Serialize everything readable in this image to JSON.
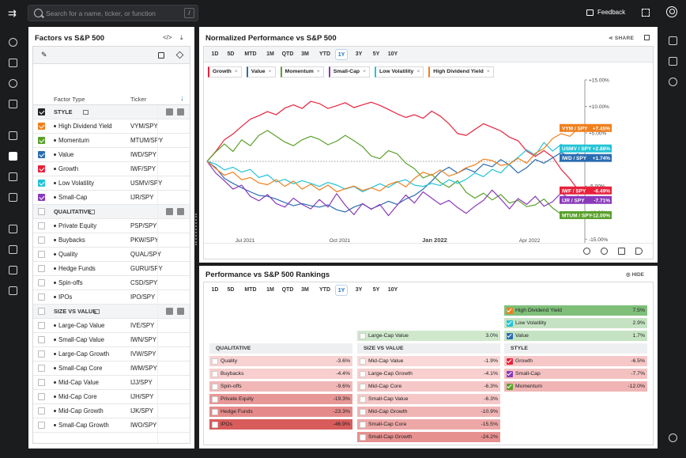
{
  "topbar": {
    "search_placeholder": "Search for a name, ticker, or function",
    "search_shortcut": "/",
    "feedback_label": "Feedback"
  },
  "factors_panel": {
    "title": "Factors vs S&P 500",
    "col_factor_type": "Factor Type",
    "col_ticker": "Ticker",
    "groups": [
      {
        "name": "STYLE",
        "rows": [
          {
            "name": "High Dividend Yield",
            "ticker": "VYM/SPY",
            "checked": true,
            "color": "#f07f1d"
          },
          {
            "name": "Momentum",
            "ticker": "MTUM/SPY",
            "checked": true,
            "color": "#5aa02c"
          },
          {
            "name": "Value",
            "ticker": "IWD/SPY",
            "checked": true,
            "color": "#2b6cb0"
          },
          {
            "name": "Growth",
            "ticker": "IWF/SPY",
            "checked": true,
            "color": "#e8213b"
          },
          {
            "name": "Low Volatility",
            "ticker": "USMV/SPY",
            "checked": true,
            "color": "#22c3d6"
          },
          {
            "name": "Small-Cap",
            "ticker": "IJR/SPY",
            "checked": true,
            "color": "#8a3ab9"
          }
        ]
      },
      {
        "name": "QUALITATIVE",
        "rows": [
          {
            "name": "Private Equity",
            "ticker": "PSP/SPY",
            "checked": false
          },
          {
            "name": "Buybacks",
            "ticker": "PKW/SPY",
            "checked": false
          },
          {
            "name": "Quality",
            "ticker": "QUAL/SPY",
            "checked": false
          },
          {
            "name": "Hedge Funds",
            "ticker": "GURU/SPY",
            "checked": false
          },
          {
            "name": "Spin-offs",
            "ticker": "CSD/SPY",
            "checked": false
          },
          {
            "name": "IPOs",
            "ticker": "IPO/SPY",
            "checked": false
          }
        ]
      },
      {
        "name": "SIZE VS VALUE",
        "rows": [
          {
            "name": "Large-Cap Value",
            "ticker": "IVE/SPY",
            "checked": false
          },
          {
            "name": "Small-Cap Value",
            "ticker": "IWN/SPY",
            "checked": false
          },
          {
            "name": "Large-Cap Growth",
            "ticker": "IVW/SPY",
            "checked": false
          },
          {
            "name": "Small-Cap Core",
            "ticker": "IWM/SPY",
            "checked": false
          },
          {
            "name": "Mid-Cap Value",
            "ticker": "IJJ/SPY",
            "checked": false
          },
          {
            "name": "Mid-Cap Core",
            "ticker": "IJH/SPY",
            "checked": false
          },
          {
            "name": "Mid-Cap Growth",
            "ticker": "IJK/SPY",
            "checked": false
          },
          {
            "name": "Small-Cap Growth",
            "ticker": "IWO/SPY",
            "checked": false
          }
        ]
      }
    ]
  },
  "chart_panel": {
    "title": "Normalized Performance vs S&P 500",
    "share_label": "SHARE",
    "ranges": [
      "1D",
      "5D",
      "MTD",
      "1M",
      "QTD",
      "3M",
      "YTD",
      "1Y",
      "3Y",
      "5Y",
      "10Y"
    ],
    "selected_range": "1Y",
    "legend": [
      {
        "name": "Growth",
        "color": "#e8213b"
      },
      {
        "name": "Value",
        "color": "#2b6cb0"
      },
      {
        "name": "Momentum",
        "color": "#5aa02c"
      },
      {
        "name": "Small-Cap",
        "color": "#8a3ab9"
      },
      {
        "name": "Low Volatility",
        "color": "#22c3d6"
      },
      {
        "name": "High Dividend Yield",
        "color": "#f07f1d"
      }
    ]
  },
  "chart_data": {
    "type": "line",
    "x_ticks": [
      "Jul 2021",
      "Oct 2021",
      "Jan 2022",
      "Apr 2022"
    ],
    "y_ticks": [
      "+15.00%",
      "+10.00%",
      "+5.00%",
      "0.00%",
      "-5.00%",
      "-10.00%",
      "-15.00%"
    ],
    "ylim": [
      -15,
      15
    ],
    "grid": false,
    "baseline": 0,
    "series": [
      {
        "name": "Growth",
        "ticker_label": "IWF / SPY",
        "end_label": "-6.49%",
        "color": "#e8213b",
        "values": [
          0,
          2.2,
          4.8,
          6.1,
          7.8,
          9.4,
          10.2,
          11.1,
          10.4,
          11.9,
          12.6,
          11.8,
          13.4,
          12.9,
          11.8,
          12.4,
          13.1,
          12.0,
          12.6,
          13.2,
          12.5,
          11.6,
          10.6,
          9.8,
          10.4,
          9.6,
          11.2,
          10.1,
          8.4,
          6.2,
          5.8,
          7.1,
          8.4,
          7.6,
          6.8,
          5.4,
          4.6,
          2.3,
          1.1,
          2.4,
          1.0,
          -1.8,
          -3.9,
          -6.49
        ]
      },
      {
        "name": "Value",
        "ticker_label": "IWD / SPY",
        "end_label": "+1.74%",
        "color": "#2b6cb0",
        "values": [
          0,
          -1.4,
          -3.8,
          -4.9,
          -5.9,
          -6.8,
          -7.6,
          -7.8,
          -8.4,
          -9.2,
          -9.9,
          -9.4,
          -9.9,
          -10.2,
          -9.7,
          -10.8,
          -11.3,
          -10.2,
          -9.5,
          -10.6,
          -9.8,
          -8.9,
          -9.6,
          -8.4,
          -7.6,
          -6.2,
          -4.4,
          -2.4,
          -1.3,
          -2.6,
          -1.6,
          -2.4,
          -0.6,
          -1.2,
          0.4,
          -0.8,
          -2.6,
          -1.4,
          0.4,
          -0.4,
          0.8,
          2.0,
          0.9,
          1.74
        ]
      },
      {
        "name": "Momentum",
        "ticker_label": "MTUM / SPY",
        "end_label": "-12.00%",
        "color": "#5aa02c",
        "values": [
          0,
          2.1,
          3.9,
          2.2,
          4.8,
          3.5,
          5.8,
          6.9,
          5.6,
          4.3,
          3.5,
          4.8,
          5.6,
          4.9,
          3.7,
          4.5,
          5.8,
          4.6,
          3.3,
          1.2,
          0.6,
          2.4,
          1.7,
          -0.4,
          -1.6,
          -3.7,
          -2.9,
          -4.7,
          -5.8,
          -4.3,
          -6.9,
          -8.2,
          -7.1,
          -8.6,
          -7.4,
          -9.3,
          -8.7,
          -10.1,
          -9.7,
          -8.4,
          -10.4,
          -11.8,
          -11.3,
          -12.0
        ]
      },
      {
        "name": "Small-Cap",
        "ticker_label": "IJR / SPY",
        "end_label": "-7.71%",
        "color": "#8a3ab9",
        "values": [
          0,
          -2.6,
          -4.3,
          -6.2,
          -5.3,
          -7.8,
          -8.8,
          -7.4,
          -9.4,
          -10.2,
          -8.2,
          -9.6,
          -10.6,
          -8.5,
          -10.2,
          -7.2,
          -9.8,
          -11.9,
          -9.4,
          -10.7,
          -9.6,
          -12.1,
          -9.8,
          -7.5,
          -9.3,
          -6.8,
          -8.2,
          -9.6,
          -8.7,
          -10.3,
          -11.6,
          -10.0,
          -8.7,
          -6.4,
          -8.4,
          -10.6,
          -8.3,
          -9.6,
          -7.8,
          -10.0,
          -9.0,
          -7.0,
          -8.4,
          -7.71
        ]
      },
      {
        "name": "Low Volatility",
        "ticker_label": "USMV / SPY",
        "end_label": "+2.88%",
        "color": "#22c3d6",
        "values": [
          0,
          -0.6,
          -1.9,
          -1.3,
          -2.4,
          -1.8,
          -3.6,
          -3.0,
          -4.6,
          -4.0,
          -5.0,
          -4.3,
          -4.9,
          -5.6,
          -4.7,
          -5.3,
          -6.2,
          -5.6,
          -6.8,
          -5.9,
          -5.0,
          -5.8,
          -4.6,
          -4.1,
          -5.3,
          -5.6,
          -4.9,
          -5.4,
          -4.1,
          -4.9,
          -4.0,
          -2.6,
          -3.4,
          -1.8,
          -2.6,
          -0.6,
          0.9,
          2.6,
          1.4,
          4.2,
          2.3,
          3.8,
          2.3,
          2.88
        ]
      },
      {
        "name": "High Dividend Yield",
        "ticker_label": "VYM / SPY",
        "end_label": "+7.45%",
        "color": "#f07f1d",
        "values": [
          0,
          -1.6,
          -3.1,
          -2.4,
          -4.1,
          -3.6,
          -4.8,
          -5.2,
          -4.1,
          -5.6,
          -4.4,
          -6.2,
          -5.1,
          -6.4,
          -5.3,
          -6.8,
          -6.1,
          -5.5,
          -6.5,
          -5.9,
          -6.6,
          -5.2,
          -4.5,
          -5.7,
          -3.8,
          -2.4,
          -3.1,
          -1.9,
          -3.3,
          -2.6,
          -1.4,
          -0.8,
          0.5,
          0.2,
          -0.9,
          -0.6,
          0.7,
          -0.4,
          1.8,
          2.9,
          5.1,
          6.2,
          5.6,
          7.45
        ]
      }
    ]
  },
  "rankings_panel": {
    "title": "Performance vs S&P 500 Rankings",
    "hide_label": "HIDE",
    "ranges": [
      "1D",
      "5D",
      "MTD",
      "1M",
      "QTD",
      "3M",
      "YTD",
      "1Y",
      "3Y",
      "5Y",
      "10Y"
    ],
    "selected_range": "1Y",
    "qualitative_label": "QUALITATIVE",
    "size_label": "SIZE VS VALUE",
    "style_label": "STYLE",
    "style_positive": [
      {
        "name": "High Dividend Yield",
        "value": "7.5%",
        "checked": true,
        "color": "#f07f1d"
      },
      {
        "name": "Low Volatility",
        "value": "2.9%",
        "checked": true,
        "color": "#22c3d6"
      },
      {
        "name": "Value",
        "value": "1.7%",
        "checked": true,
        "color": "#2b6cb0"
      }
    ],
    "size_positive": [
      {
        "name": "Large-Cap Value",
        "value": "3.0%",
        "checked": false
      }
    ],
    "qualitative_negative": [
      {
        "name": "Quality",
        "value": "-3.6%",
        "level": 0.1
      },
      {
        "name": "Buybacks",
        "value": "-4.4%",
        "level": 0.12
      },
      {
        "name": "Spin-offs",
        "value": "-9.6%",
        "level": 0.3
      },
      {
        "name": "Private Equity",
        "value": "-19.3%",
        "level": 0.55
      },
      {
        "name": "Hedge Funds",
        "value": "-23.3%",
        "level": 0.65
      },
      {
        "name": "IPOs",
        "value": "-46.9%",
        "level": 1
      }
    ],
    "size_negative": [
      {
        "name": "Mid-Cap Value",
        "value": "-1.9%",
        "level": 0.05
      },
      {
        "name": "Large-Cap Growth",
        "value": "-4.1%",
        "level": 0.12
      },
      {
        "name": "Mid-Cap Core",
        "value": "-6.3%",
        "level": 0.18
      },
      {
        "name": "Small-Cap Value",
        "value": "-6.3%",
        "level": 0.18
      },
      {
        "name": "Mid-Cap Growth",
        "value": "-10.9%",
        "level": 0.32
      },
      {
        "name": "Small-Cap Core",
        "value": "-15.5%",
        "level": 0.42
      },
      {
        "name": "Small-Cap Growth",
        "value": "-24.2%",
        "level": 0.6
      }
    ],
    "style_negative": [
      {
        "name": "Growth",
        "value": "-6.5%",
        "checked": true,
        "color": "#e8213b",
        "level": 0.18
      },
      {
        "name": "Small-Cap",
        "value": "-7.7%",
        "checked": true,
        "color": "#8a3ab9",
        "level": 0.22
      },
      {
        "name": "Momentum",
        "value": "-12.0%",
        "checked": true,
        "color": "#5aa02c",
        "level": 0.32
      }
    ]
  }
}
